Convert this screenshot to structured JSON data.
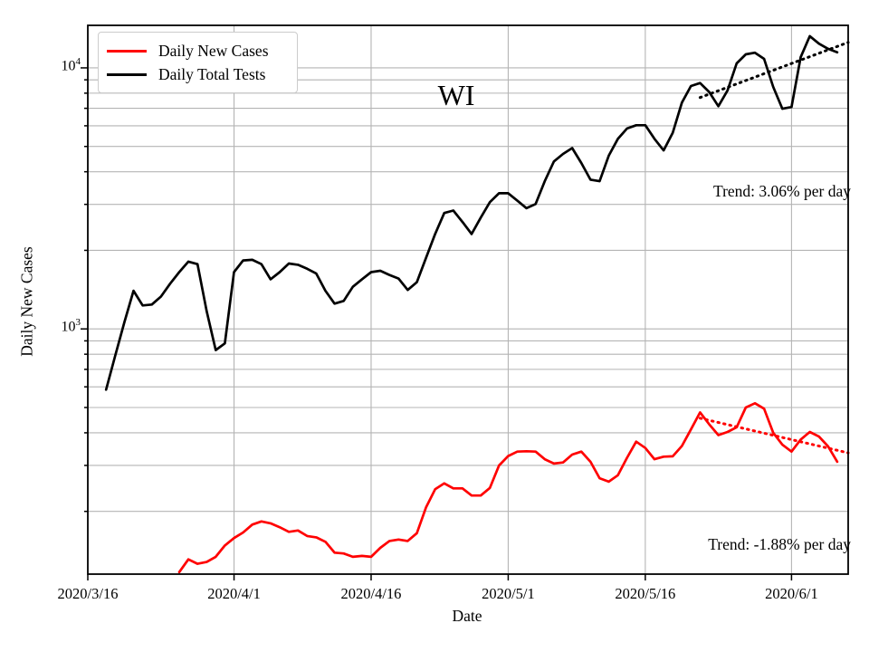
{
  "figure": {
    "legend": {
      "position": "upper-left",
      "items": [
        {
          "label": "Daily New Cases",
          "color": "#ff0000"
        },
        {
          "label": "Daily Total Tests",
          "color": "#000000"
        }
      ]
    }
  },
  "chart_data": {
    "type": "line",
    "title": "WI",
    "xlabel": "Date",
    "ylabel": "Daily New Cases",
    "y_scale": "log",
    "grid": true,
    "ylim": [
      115,
      14550
    ],
    "xlim_days": [
      0,
      83.2
    ],
    "x_epoch": "2020/3/16",
    "x_ticks": [
      {
        "day": 0,
        "label": "2020/3/16"
      },
      {
        "day": 16,
        "label": "2020/4/1"
      },
      {
        "day": 31,
        "label": "2020/4/16"
      },
      {
        "day": 46,
        "label": "2020/5/1"
      },
      {
        "day": 61,
        "label": "2020/5/16"
      },
      {
        "day": 77,
        "label": "2020/6/1"
      }
    ],
    "y_ticks": [
      {
        "value": 1000,
        "base": "10",
        "exp": "3"
      },
      {
        "value": 10000,
        "base": "10",
        "exp": "4"
      }
    ],
    "series": [
      {
        "name": "Daily New Cases",
        "color": "#ff0000",
        "style": "solid",
        "start_day": 10,
        "start_date": "2020/3/26",
        "cadence": "daily",
        "values": [
          117,
          131,
          126,
          128,
          134,
          148,
          158,
          166,
          178,
          183,
          180,
          174,
          167,
          169,
          161,
          159,
          153,
          139,
          138,
          134,
          135,
          134,
          145,
          154,
          156,
          154,
          165,
          207,
          243,
          256,
          245,
          245,
          230,
          230,
          246,
          300,
          326,
          339,
          340,
          339,
          317,
          305,
          308,
          330,
          339,
          310,
          268,
          260,
          275,
          321,
          370,
          350,
          317,
          324,
          325,
          356,
          412,
          479,
          431,
          392,
          403,
          420,
          500,
          519,
          495,
          400,
          360,
          339,
          377,
          403,
          387,
          355,
          310
        ]
      },
      {
        "name": "Daily Total Tests",
        "color": "#000000",
        "style": "solid",
        "start_day": 2,
        "start_date": "2020/3/18",
        "cadence": "daily",
        "values": [
          585,
          790,
          1060,
          1400,
          1230,
          1240,
          1330,
          1490,
          1650,
          1810,
          1770,
          1170,
          830,
          880,
          1650,
          1830,
          1840,
          1770,
          1550,
          1650,
          1780,
          1760,
          1700,
          1630,
          1400,
          1250,
          1280,
          1450,
          1550,
          1650,
          1670,
          1610,
          1560,
          1410,
          1510,
          1870,
          2310,
          2780,
          2840,
          2570,
          2310,
          2670,
          3060,
          3310,
          3310,
          3100,
          2900,
          3010,
          3680,
          4380,
          4680,
          4930,
          4320,
          3730,
          3680,
          4610,
          5350,
          5860,
          6030,
          6030,
          5350,
          4830,
          5640,
          7360,
          8520,
          8750,
          8080,
          7130,
          8190,
          10400,
          11270,
          11430,
          10830,
          8450,
          6970,
          7080,
          10980,
          13230,
          12380,
          11830,
          11470
        ]
      },
      {
        "name": "Daily Total Tests trend",
        "color": "#000000",
        "style": "dotted",
        "trend_rate": "+3.06% per day",
        "days": [
          67,
          83.2
        ],
        "values": [
          7700,
          12520
        ]
      },
      {
        "name": "Daily New Cases trend",
        "color": "#ff0000",
        "style": "dotted",
        "trend_rate": "-1.88% per day",
        "days": [
          67,
          83.2
        ],
        "values": [
          455,
          335
        ]
      }
    ],
    "annotations": [
      {
        "text": "Trend: 3.06% per day",
        "series": "Daily Total Tests"
      },
      {
        "text": "Trend: -1.88% per day",
        "series": "Daily New Cases"
      }
    ]
  }
}
